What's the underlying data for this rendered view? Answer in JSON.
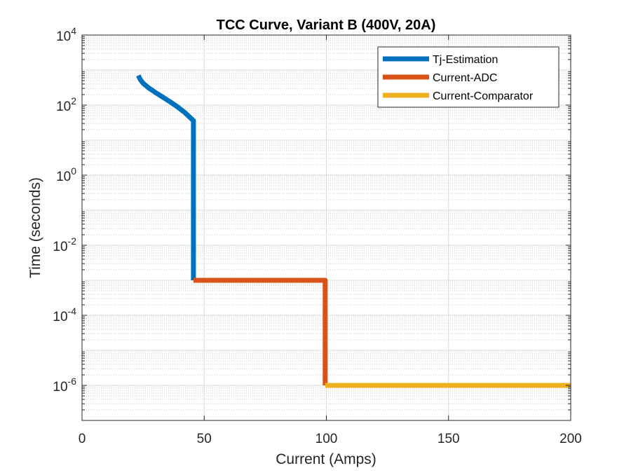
{
  "chart_data": {
    "type": "line",
    "title": "TCC Curve, Variant B (400V, 20A)",
    "xlabel": "Current (Amps)",
    "ylabel": "Time (seconds)",
    "xlim": [
      0,
      200
    ],
    "ylim": [
      1e-07,
      10000.0
    ],
    "yscale": "log",
    "grid": true,
    "minor_grid": true,
    "legend_position": "top-right",
    "x_ticks": [
      0,
      50,
      100,
      150,
      200
    ],
    "x_tick_labels": [
      "0",
      "50",
      "100",
      "150",
      "200"
    ],
    "y_ticks": [
      {
        "base": "10",
        "exp": "4",
        "value": 10000
      },
      {
        "base": "10",
        "exp": "2",
        "value": 100
      },
      {
        "base": "10",
        "exp": "0",
        "value": 1
      },
      {
        "base": "10",
        "exp": "-2",
        "value": 0.01
      },
      {
        "base": "10",
        "exp": "-4",
        "value": 0.0001
      },
      {
        "base": "10",
        "exp": "-6",
        "value": 1e-06
      }
    ],
    "series": [
      {
        "name": "Tj-Estimation",
        "color": "#0072BD",
        "points": [
          [
            23,
            700
          ],
          [
            24,
            520
          ],
          [
            25,
            420
          ],
          [
            27,
            320
          ],
          [
            30,
            230
          ],
          [
            33,
            170
          ],
          [
            36,
            125
          ],
          [
            39,
            90
          ],
          [
            42,
            62
          ],
          [
            45.6,
            36
          ],
          [
            45.6,
            0.001
          ]
        ]
      },
      {
        "name": "Current-ADC",
        "color": "#D95319",
        "points": [
          [
            45.6,
            0.001
          ],
          [
            99.5,
            0.001
          ],
          [
            99.5,
            1e-06
          ]
        ]
      },
      {
        "name": "Current-Comparator",
        "color": "#EDB120",
        "points": [
          [
            99.5,
            1e-06
          ],
          [
            200,
            1e-06
          ]
        ]
      }
    ]
  }
}
